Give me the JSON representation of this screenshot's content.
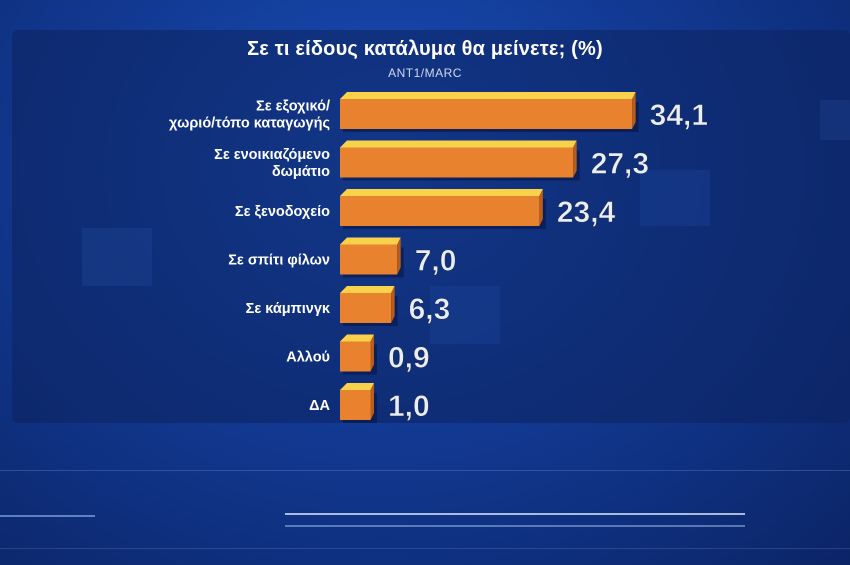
{
  "chart_data": {
    "type": "bar",
    "orientation": "horizontal",
    "title": "Σε τι είδους κατάλυμα θα μείνετε; (%)",
    "subtitle": "ANT1/MARC",
    "categories": [
      [
        "Σε εξοχικό/",
        "χωριό/τόπο καταγωγής"
      ],
      [
        "Σε ενοικιαζόμενο",
        "δωμάτιο"
      ],
      [
        "Σε ξενοδοχείο"
      ],
      [
        "Σε σπίτι φίλων"
      ],
      [
        "Σε κάμπινγκ"
      ],
      [
        "Αλλού"
      ],
      [
        "ΔΑ"
      ]
    ],
    "values": [
      34.1,
      27.3,
      23.4,
      7.0,
      6.3,
      0.9,
      1.0
    ],
    "value_labels": [
      "34,1",
      "27,3",
      "23,4",
      "7,0",
      "6,3",
      "0,9",
      "1,0"
    ],
    "bar_color": "#e8822e",
    "bar_top_color": "#f7d24a",
    "grid": false,
    "legend": "none"
  }
}
